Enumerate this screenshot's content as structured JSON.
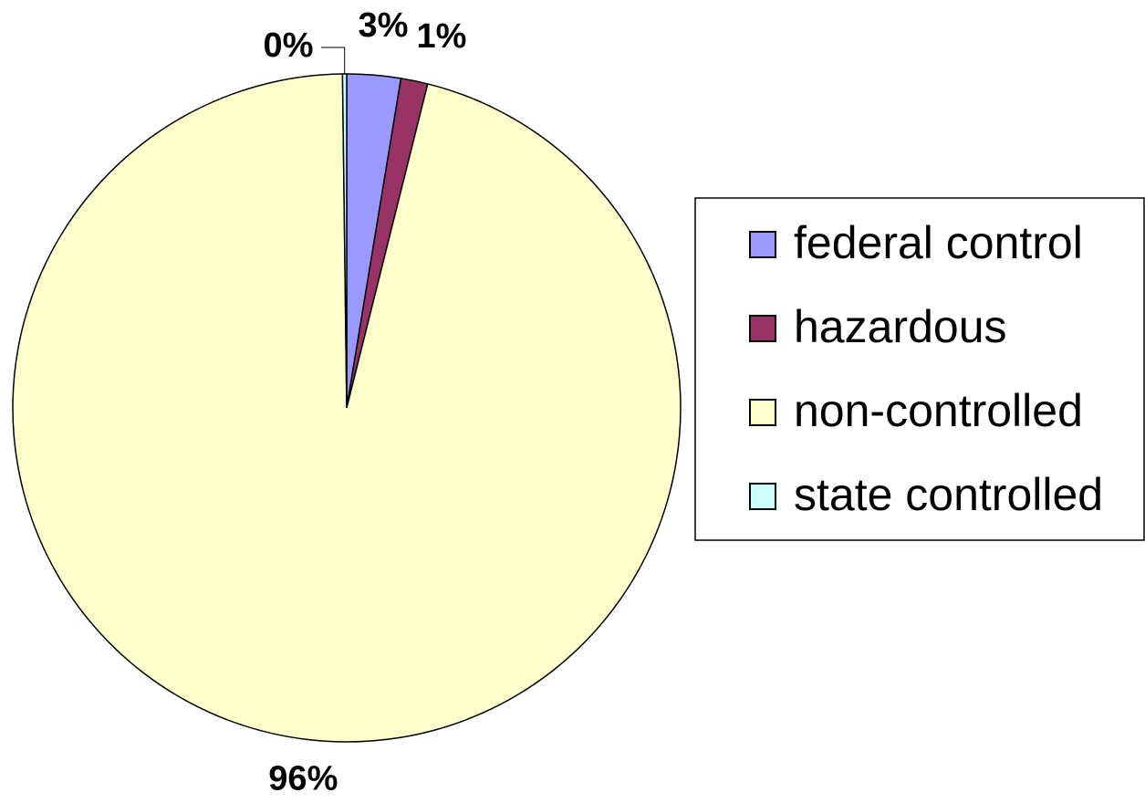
{
  "chart_data": {
    "type": "pie",
    "categories": [
      "federal control",
      "hazardous",
      "non-controlled",
      "state controlled"
    ],
    "values": [
      2.6,
      1.3,
      95.9,
      0.2
    ],
    "value_labels": [
      "3%",
      "1%",
      "96%",
      "0%"
    ],
    "colors": [
      "#9999ff",
      "#993366",
      "#ffffcc",
      "#ccffff"
    ],
    "legend": "right"
  }
}
